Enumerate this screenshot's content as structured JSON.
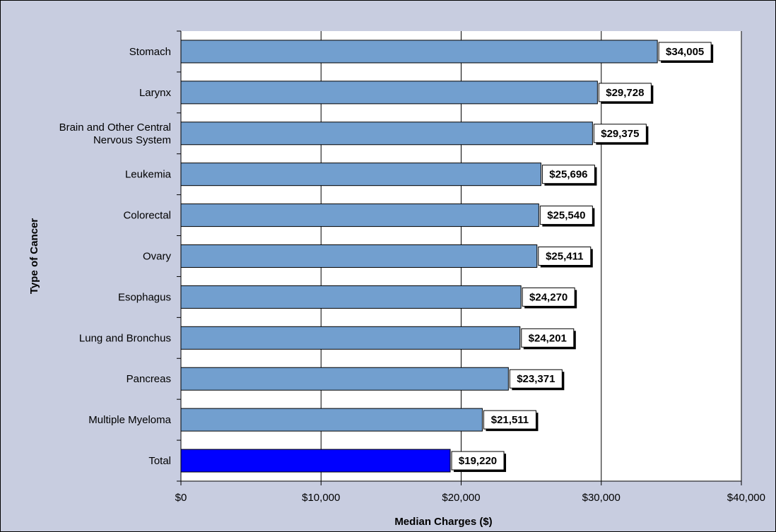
{
  "chart_data": {
    "type": "bar",
    "orientation": "horizontal",
    "categories": [
      "Stomach",
      "Larynx",
      "Brain and Other Central Nervous System",
      "Leukemia",
      "Colorectal",
      "Ovary",
      "Esophagus",
      "Lung and Bronchus",
      "Pancreas",
      "Multiple Myeloma",
      "Total"
    ],
    "category_label_lines": [
      [
        "Stomach"
      ],
      [
        "Larynx"
      ],
      [
        "Brain and Other Central",
        "Nervous System"
      ],
      [
        "Leukemia"
      ],
      [
        "Colorectal"
      ],
      [
        "Ovary"
      ],
      [
        "Esophagus"
      ],
      [
        "Lung and Bronchus"
      ],
      [
        "Pancreas"
      ],
      [
        "Multiple Myeloma"
      ],
      [
        "Total"
      ]
    ],
    "values": [
      34005,
      29728,
      29375,
      25696,
      25540,
      25411,
      24270,
      24201,
      23371,
      21511,
      19220
    ],
    "data_labels": [
      "$34,005",
      "$29,728",
      "$29,375",
      "$25,696",
      "$25,540",
      "$25,411",
      "$24,270",
      "$24,201",
      "$23,371",
      "$21,511",
      "$19,220"
    ],
    "xlabel": "Median Charges ($)",
    "ylabel": "Type of Cancer",
    "xlim": [
      0,
      40000
    ],
    "xticks": [
      0,
      10000,
      20000,
      30000,
      40000
    ],
    "xtick_labels": [
      "$0",
      "$10,000",
      "$20,000",
      "$30,000",
      "$40,000"
    ],
    "grid": "vertical",
    "colors": {
      "bar": "#729fcf",
      "highlight_bar": "#0000ff",
      "plot_background": "#ffffff",
      "chart_background": "#c8cde0",
      "gridline": "#000000"
    },
    "highlight_category": "Total"
  }
}
